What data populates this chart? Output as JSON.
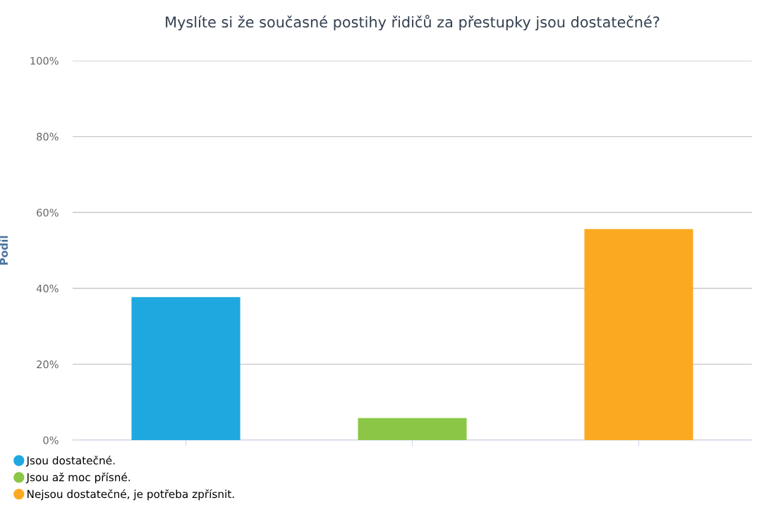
{
  "chart_data": {
    "type": "bar",
    "title": "Myslíte si že současné postihy řidičů za přestupky jsou dostatečné?",
    "ylabel": "Podíl",
    "categories": [
      null,
      null,
      null
    ],
    "series": [
      {
        "name": "Jsou dostatečné.",
        "color": "#1fa8e0",
        "values": [
          37.7,
          null,
          null
        ]
      },
      {
        "name": "Jsou až moc přísné.",
        "color": "#8bc646",
        "values": [
          null,
          5.8,
          null
        ]
      },
      {
        "name": "Nejsou dostatečné, je potřeba zpřísnit.",
        "color": "#fca922",
        "values": [
          null,
          null,
          55.6
        ]
      }
    ],
    "ylim": [
      0,
      100
    ],
    "yticks": [
      {
        "value": 0,
        "label": "0%"
      },
      {
        "value": 20,
        "label": "20%"
      },
      {
        "value": 40,
        "label": "40%"
      },
      {
        "value": 60,
        "label": "60%"
      },
      {
        "value": 80,
        "label": "80%"
      },
      {
        "value": 100,
        "label": "100%"
      }
    ],
    "grid": "y",
    "legend": "bottom left"
  }
}
